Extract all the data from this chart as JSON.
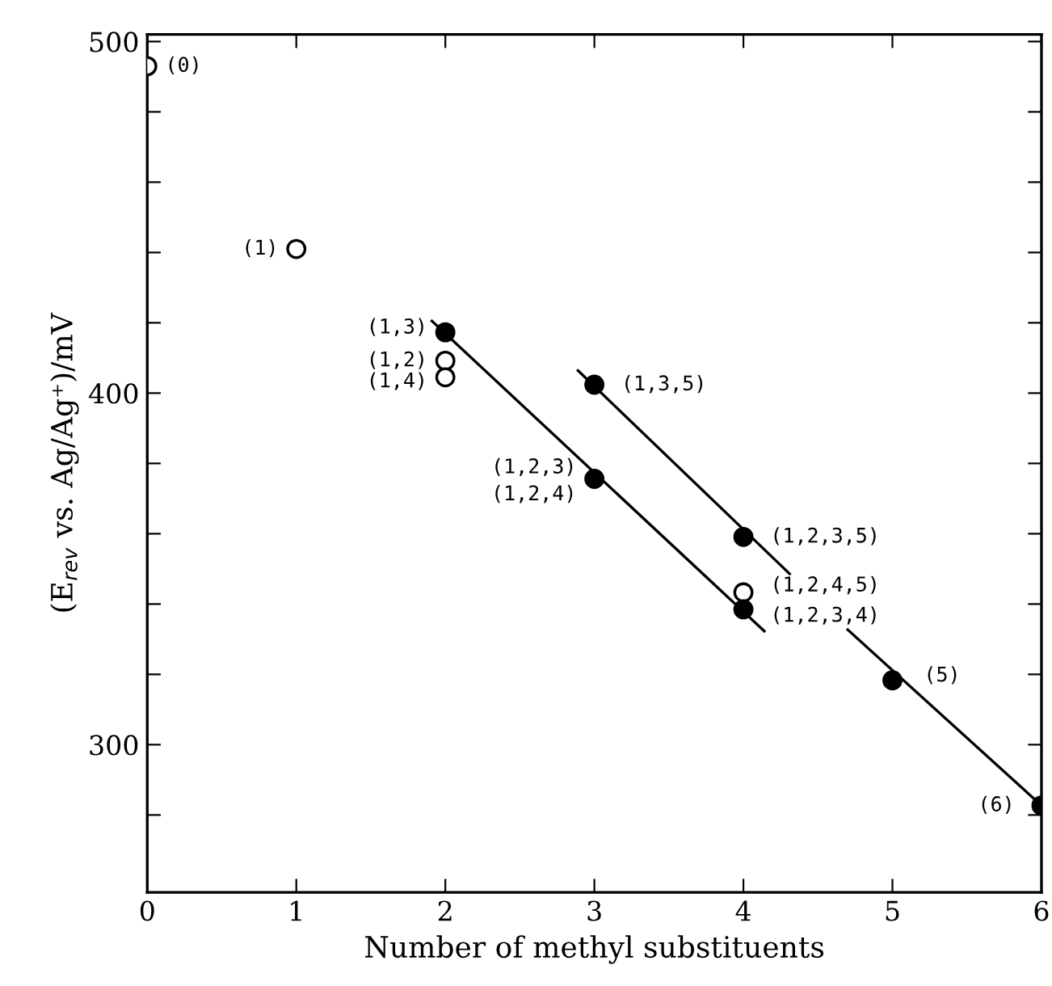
{
  "chart_data": {
    "type": "scatter",
    "xlabel": "Number of methyl substituents",
    "ylabel": "(E$_{rev}$ vs. Ag/Ag⁺)/mV",
    "xlim": [
      0,
      6
    ],
    "ylim": [
      258,
      502
    ],
    "xticks": [
      0,
      1,
      2,
      3,
      4,
      5,
      6
    ],
    "yticks": [
      {
        "value": 280,
        "label": null
      },
      300,
      {
        "value": 320,
        "label": null
      },
      {
        "value": 340,
        "label": null
      },
      {
        "value": 360,
        "label": null
      },
      {
        "value": 380,
        "label": null
      },
      400,
      {
        "value": 420,
        "label": null
      },
      {
        "value": 440,
        "label": null
      },
      {
        "value": 460,
        "label": null
      },
      {
        "value": 480,
        "label": null
      },
      500
    ],
    "grid": false,
    "legend": false,
    "series": [
      {
        "marker": "circle",
        "color": "#ffffff",
        "x": [
          0,
          1,
          2,
          2,
          4
        ],
        "values": [
          493,
          441,
          409.2,
          404.5,
          343.3
        ]
      },
      {
        "marker": "circle",
        "color": "#000000",
        "x": [
          2,
          3,
          3,
          4,
          4,
          5,
          6
        ],
        "values": [
          417.3,
          402.4,
          375.6,
          359.1,
          338.5,
          318.3,
          282.7
        ]
      },
      {
        "type": "line",
        "color": "#000000",
        "x": [
          1.91,
          4.14
        ],
        "values": [
          420.5,
          332.3
        ]
      },
      {
        "type": "line",
        "color": "#000000",
        "x": [
          2.89,
          4.31
        ],
        "values": [
          406.4,
          348.6
        ]
      },
      {
        "type": "line",
        "color": "#000000",
        "x": [
          4.7,
          6.0
        ],
        "values": [
          332.7,
          282.7
        ]
      }
    ],
    "annotations": [
      {
        "text": "(0)",
        "x": 0,
        "y": 493
      },
      {
        "text": "(1)",
        "x": 1,
        "y": 441
      },
      {
        "text": "(1,3)",
        "x": 2,
        "y": 417.3
      },
      {
        "text": "(1,2)",
        "x": 2,
        "y": 409.2
      },
      {
        "text": "(1,4)",
        "x": 2,
        "y": 404.5
      },
      {
        "text": "(1,3,5)",
        "x": 3,
        "y": 402.4
      },
      {
        "text": "(1,2,3)",
        "x": 3,
        "y": 375.6
      },
      {
        "text": "(1,2,4)",
        "x": 3,
        "y": 375.6
      },
      {
        "text": "(1,2,3,5)",
        "x": 4,
        "y": 359.1
      },
      {
        "text": "(1,2,4,5)",
        "x": 4,
        "y": 343.3
      },
      {
        "text": "(1,2,3,4)",
        "x": 4,
        "y": 338.5
      },
      {
        "text": "(5)",
        "x": 5,
        "y": 318.3
      },
      {
        "text": "(6)",
        "x": 6,
        "y": 282.7
      }
    ]
  }
}
